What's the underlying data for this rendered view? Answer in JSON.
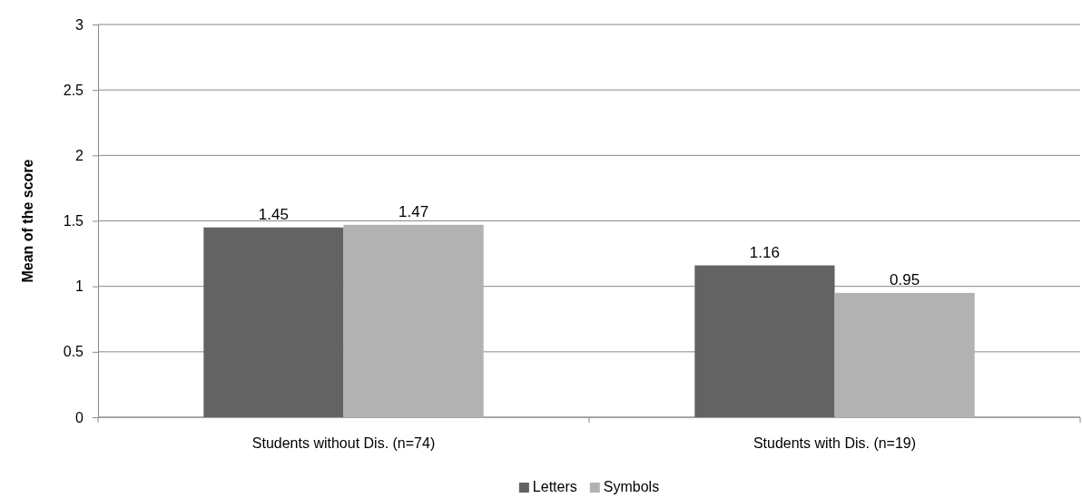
{
  "chart_data": {
    "type": "bar",
    "ylabel": "Mean of the score",
    "categories": [
      "Students without Dis. (n=74)",
      "Students with Dis. (n=19)"
    ],
    "series": [
      {
        "name": "Letters",
        "color": "#636363",
        "values": [
          1.45,
          1.16
        ]
      },
      {
        "name": "Symbols",
        "color": "#b2b2b2",
        "values": [
          1.47,
          0.95
        ]
      }
    ],
    "ylim": [
      0,
      3
    ],
    "yticks": [
      0,
      0.5,
      1,
      1.5,
      2,
      2.5,
      3
    ],
    "grid": "y",
    "legend": "bottom",
    "data_labels": true
  }
}
